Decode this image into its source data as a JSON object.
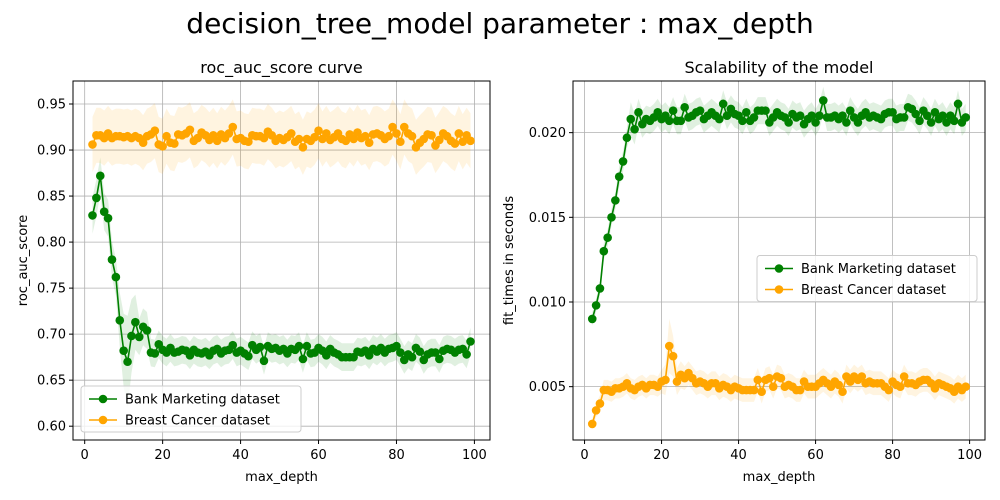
{
  "suptitle": "decision_tree_model parameter : max_depth",
  "colors": {
    "bank": "#008000",
    "cancer": "#FFA500",
    "grid": "#b0b0b0",
    "axes": "#000000"
  },
  "chart_data": [
    {
      "type": "line",
      "title": "roc_auc_score curve",
      "xlabel": "max_depth",
      "ylabel": "roc_auc_score",
      "xlim": [
        -3,
        104
      ],
      "ylim": [
        0.585,
        0.975
      ],
      "xticks": [
        0,
        20,
        40,
        60,
        80,
        100
      ],
      "xtick_labels": [
        "0",
        "20",
        "40",
        "60",
        "80",
        "100"
      ],
      "yticks": [
        0.6,
        0.65,
        0.7,
        0.75,
        0.8,
        0.85,
        0.9,
        0.95
      ],
      "ytick_labels": [
        "0.60",
        "0.65",
        "0.70",
        "0.75",
        "0.80",
        "0.85",
        "0.90",
        "0.95"
      ],
      "grid": true,
      "legend_position": "lower-left",
      "x_start": 2,
      "x_step": 1,
      "series": [
        {
          "name": "Bank Marketing dataset",
          "color": "#008000",
          "values": [
            0.829,
            0.848,
            0.872,
            0.833,
            0.826,
            0.781,
            0.762,
            0.715,
            0.682,
            0.67,
            0.698,
            0.713,
            0.697,
            0.708,
            0.704,
            0.68,
            0.679,
            0.689,
            0.683,
            0.68,
            0.685,
            0.68,
            0.681,
            0.683,
            0.682,
            0.677,
            0.683,
            0.68,
            0.679,
            0.681,
            0.677,
            0.682,
            0.684,
            0.679,
            0.682,
            0.683,
            0.688,
            0.68,
            0.682,
            0.679,
            0.676,
            0.688,
            0.683,
            0.686,
            0.671,
            0.687,
            0.684,
            0.685,
            0.682,
            0.684,
            0.679,
            0.684,
            0.683,
            0.687,
            0.673,
            0.687,
            0.679,
            0.68,
            0.685,
            0.682,
            0.677,
            0.684,
            0.68,
            0.678,
            0.675,
            0.675,
            0.675,
            0.675,
            0.681,
            0.68,
            0.682,
            0.677,
            0.684,
            0.681,
            0.685,
            0.68,
            0.684,
            0.685,
            0.687,
            0.68,
            0.672,
            0.678,
            0.675,
            0.685,
            0.681,
            0.672,
            0.678,
            0.68,
            0.68,
            0.673,
            0.682,
            0.684,
            0.683,
            0.68,
            0.683,
            0.684,
            0.678,
            0.692
          ],
          "spread": [
            0.02,
            0.02,
            0.02,
            0.02,
            0.02,
            0.02,
            0.02,
            0.03,
            0.04,
            0.05,
            0.04,
            0.03,
            0.02,
            0.02,
            0.02,
            0.015,
            0.015,
            0.015,
            0.015,
            0.015,
            0.015,
            0.015,
            0.015,
            0.015,
            0.015,
            0.015,
            0.015,
            0.015,
            0.015,
            0.015,
            0.015,
            0.015,
            0.015,
            0.015,
            0.015,
            0.015,
            0.015,
            0.015,
            0.015,
            0.015,
            0.015,
            0.015,
            0.015,
            0.015,
            0.015,
            0.015,
            0.015,
            0.015,
            0.015,
            0.015,
            0.015,
            0.015,
            0.015,
            0.015,
            0.015,
            0.015,
            0.015,
            0.015,
            0.015,
            0.015,
            0.015,
            0.015,
            0.015,
            0.015,
            0.015,
            0.015,
            0.015,
            0.015,
            0.015,
            0.015,
            0.015,
            0.015,
            0.015,
            0.015,
            0.015,
            0.015,
            0.015,
            0.015,
            0.015,
            0.015,
            0.015,
            0.015,
            0.015,
            0.015,
            0.015,
            0.015,
            0.015,
            0.015,
            0.015,
            0.015,
            0.015,
            0.015,
            0.015,
            0.015,
            0.015,
            0.015,
            0.015,
            0.015
          ]
        },
        {
          "name": "Breast Cancer dataset",
          "color": "#FFA500",
          "values": [
            0.906,
            0.916,
            0.916,
            0.913,
            0.918,
            0.913,
            0.915,
            0.915,
            0.914,
            0.915,
            0.913,
            0.915,
            0.913,
            0.908,
            0.915,
            0.917,
            0.921,
            0.906,
            0.904,
            0.915,
            0.908,
            0.907,
            0.917,
            0.916,
            0.918,
            0.922,
            0.91,
            0.913,
            0.919,
            0.916,
            0.911,
            0.916,
            0.91,
            0.917,
            0.913,
            0.918,
            0.925,
            0.912,
            0.913,
            0.91,
            0.909,
            0.916,
            0.915,
            0.915,
            0.913,
            0.92,
            0.916,
            0.91,
            0.913,
            0.911,
            0.914,
            0.918,
            0.909,
            0.912,
            0.903,
            0.912,
            0.91,
            0.914,
            0.921,
            0.912,
            0.918,
            0.911,
            0.914,
            0.918,
            0.912,
            0.91,
            0.917,
            0.912,
            0.919,
            0.913,
            0.915,
            0.908,
            0.917,
            0.918,
            0.916,
            0.912,
            0.915,
            0.925,
            0.918,
            0.909,
            0.925,
            0.918,
            0.915,
            0.903,
            0.908,
            0.912,
            0.917,
            0.916,
            0.905,
            0.911,
            0.918,
            0.915,
            0.91,
            0.907,
            0.918,
            0.909,
            0.916,
            0.91
          ],
          "spread": [
            0.03,
            0.03,
            0.03,
            0.03,
            0.03,
            0.03,
            0.03,
            0.03,
            0.03,
            0.03,
            0.03,
            0.03,
            0.03,
            0.03,
            0.03,
            0.03,
            0.03,
            0.03,
            0.03,
            0.03,
            0.03,
            0.03,
            0.03,
            0.03,
            0.03,
            0.03,
            0.03,
            0.03,
            0.03,
            0.03,
            0.03,
            0.03,
            0.03,
            0.03,
            0.03,
            0.03,
            0.03,
            0.03,
            0.03,
            0.03,
            0.03,
            0.03,
            0.03,
            0.03,
            0.03,
            0.03,
            0.03,
            0.03,
            0.03,
            0.03,
            0.03,
            0.03,
            0.03,
            0.03,
            0.03,
            0.03,
            0.03,
            0.03,
            0.03,
            0.03,
            0.03,
            0.03,
            0.03,
            0.03,
            0.03,
            0.03,
            0.03,
            0.03,
            0.03,
            0.03,
            0.03,
            0.03,
            0.03,
            0.03,
            0.03,
            0.03,
            0.03,
            0.03,
            0.03,
            0.03,
            0.03,
            0.03,
            0.03,
            0.03,
            0.03,
            0.03,
            0.03,
            0.03,
            0.03,
            0.03,
            0.03,
            0.03,
            0.03,
            0.03,
            0.03,
            0.03,
            0.03,
            0.03
          ]
        }
      ]
    },
    {
      "type": "line",
      "title": "Scalability of the model",
      "xlabel": "max_depth",
      "ylabel": "fit_times in seconds",
      "xlim": [
        -3,
        104
      ],
      "ylim": [
        0.00185,
        0.02305
      ],
      "xticks": [
        0,
        20,
        40,
        60,
        80,
        100
      ],
      "xtick_labels": [
        "0",
        "20",
        "40",
        "60",
        "80",
        "100"
      ],
      "yticks": [
        0.005,
        0.01,
        0.015,
        0.02
      ],
      "ytick_labels": [
        "0.005",
        "0.010",
        "0.015",
        "0.020"
      ],
      "grid": true,
      "legend_position": "center-right",
      "x_start": 2,
      "x_step": 1,
      "series": [
        {
          "name": "Bank Marketing dataset",
          "color": "#008000",
          "values": [
            0.009,
            0.0098,
            0.0108,
            0.013,
            0.0138,
            0.015,
            0.016,
            0.0174,
            0.0183,
            0.0197,
            0.0208,
            0.0202,
            0.0212,
            0.0205,
            0.0208,
            0.0207,
            0.0209,
            0.0212,
            0.0208,
            0.021,
            0.0207,
            0.0213,
            0.0207,
            0.0207,
            0.0215,
            0.0209,
            0.021,
            0.0212,
            0.0213,
            0.0208,
            0.021,
            0.0212,
            0.021,
            0.0208,
            0.0217,
            0.021,
            0.0214,
            0.0211,
            0.021,
            0.0207,
            0.0212,
            0.0207,
            0.0209,
            0.0213,
            0.0213,
            0.0213,
            0.0206,
            0.0209,
            0.0212,
            0.021,
            0.0209,
            0.0206,
            0.0211,
            0.0209,
            0.021,
            0.0205,
            0.0208,
            0.021,
            0.0206,
            0.021,
            0.0219,
            0.0209,
            0.0209,
            0.021,
            0.0208,
            0.021,
            0.0206,
            0.0213,
            0.0209,
            0.0206,
            0.021,
            0.0212,
            0.0209,
            0.021,
            0.0209,
            0.0208,
            0.0211,
            0.0212,
            0.0212,
            0.0208,
            0.0209,
            0.0209,
            0.0215,
            0.0214,
            0.0211,
            0.0207,
            0.0213,
            0.021,
            0.0206,
            0.0212,
            0.0208,
            0.021,
            0.0206,
            0.021,
            0.0207,
            0.0217,
            0.0206,
            0.0209
          ],
          "spread": [
            0.0004,
            0.0004,
            0.0004,
            0.0005,
            0.0005,
            0.0005,
            0.0005,
            0.0006,
            0.0006,
            0.0006,
            0.001,
            0.0009,
            0.0008,
            0.0008,
            0.0008,
            0.0008,
            0.0008,
            0.0008,
            0.0008,
            0.0008,
            0.0008,
            0.0008,
            0.0008,
            0.0008,
            0.0008,
            0.0008,
            0.0008,
            0.0008,
            0.0008,
            0.0008,
            0.0008,
            0.0008,
            0.0008,
            0.0008,
            0.0008,
            0.0008,
            0.0008,
            0.0008,
            0.0008,
            0.0008,
            0.0008,
            0.0008,
            0.0008,
            0.0008,
            0.0008,
            0.0008,
            0.0008,
            0.0008,
            0.0008,
            0.0008,
            0.0008,
            0.0008,
            0.0008,
            0.0008,
            0.0008,
            0.0008,
            0.0008,
            0.0008,
            0.0008,
            0.0008,
            0.0008,
            0.0008,
            0.0008,
            0.0008,
            0.0008,
            0.0008,
            0.0008,
            0.0008,
            0.0008,
            0.0008,
            0.0008,
            0.0008,
            0.0008,
            0.0008,
            0.0008,
            0.0008,
            0.0008,
            0.0008,
            0.0008,
            0.0008,
            0.0008,
            0.0008,
            0.0008,
            0.0008,
            0.0008,
            0.0008,
            0.0008,
            0.0008,
            0.0008,
            0.0008,
            0.0008,
            0.0008,
            0.0008,
            0.0008,
            0.0008,
            0.0008,
            0.0008,
            0.0008
          ]
        },
        {
          "name": "Breast Cancer dataset",
          "color": "#FFA500",
          "values": [
            0.0028,
            0.0036,
            0.004,
            0.0048,
            0.0048,
            0.0047,
            0.0049,
            0.0049,
            0.005,
            0.0052,
            0.0049,
            0.0048,
            0.005,
            0.0051,
            0.0049,
            0.0051,
            0.0051,
            0.005,
            0.0053,
            0.0054,
            0.0074,
            0.0068,
            0.0053,
            0.0057,
            0.0055,
            0.0058,
            0.0055,
            0.0052,
            0.0053,
            0.0052,
            0.005,
            0.0052,
            0.0052,
            0.0049,
            0.0051,
            0.005,
            0.0048,
            0.005,
            0.0049,
            0.0048,
            0.0048,
            0.0048,
            0.0048,
            0.0054,
            0.0047,
            0.0054,
            0.0055,
            0.005,
            0.0056,
            0.0055,
            0.005,
            0.0051,
            0.005,
            0.0048,
            0.0048,
            0.0053,
            0.005,
            0.005,
            0.005,
            0.0052,
            0.0054,
            0.0052,
            0.005,
            0.0053,
            0.0051,
            0.0047,
            0.0056,
            0.0053,
            0.0056,
            0.0054,
            0.0056,
            0.0052,
            0.0053,
            0.0052,
            0.0052,
            0.0052,
            0.005,
            0.0048,
            0.0053,
            0.0051,
            0.005,
            0.0056,
            0.0052,
            0.0052,
            0.0051,
            0.0053,
            0.0054,
            0.0054,
            0.0052,
            0.0049,
            0.0052,
            0.0051,
            0.005,
            0.0049,
            0.0047,
            0.005,
            0.0048,
            0.005
          ],
          "spread": [
            0.0003,
            0.0004,
            0.0005,
            0.0006,
            0.0006,
            0.0006,
            0.0006,
            0.0006,
            0.0006,
            0.0006,
            0.0006,
            0.0006,
            0.0006,
            0.0006,
            0.0006,
            0.0006,
            0.0006,
            0.0006,
            0.0007,
            0.0009,
            0.0016,
            0.0012,
            0.0008,
            0.0008,
            0.0007,
            0.0007,
            0.0007,
            0.0007,
            0.0007,
            0.0007,
            0.0007,
            0.0007,
            0.0007,
            0.0007,
            0.0007,
            0.0007,
            0.0007,
            0.0007,
            0.0007,
            0.0007,
            0.0007,
            0.0007,
            0.0007,
            0.0007,
            0.0007,
            0.0007,
            0.0007,
            0.0007,
            0.0007,
            0.0007,
            0.0007,
            0.0007,
            0.0007,
            0.0007,
            0.0007,
            0.0007,
            0.0007,
            0.0007,
            0.0007,
            0.0007,
            0.0007,
            0.0007,
            0.0007,
            0.0007,
            0.0007,
            0.0007,
            0.0007,
            0.0007,
            0.0007,
            0.0007,
            0.0007,
            0.0007,
            0.0007,
            0.0007,
            0.0007,
            0.0007,
            0.0007,
            0.0007,
            0.0007,
            0.0007,
            0.0007,
            0.0007,
            0.0007,
            0.0007,
            0.0007,
            0.0007,
            0.0007,
            0.0007,
            0.0007,
            0.0007,
            0.0007,
            0.0007,
            0.0007,
            0.0007,
            0.0007,
            0.0007,
            0.0007,
            0.0007
          ]
        }
      ]
    }
  ]
}
